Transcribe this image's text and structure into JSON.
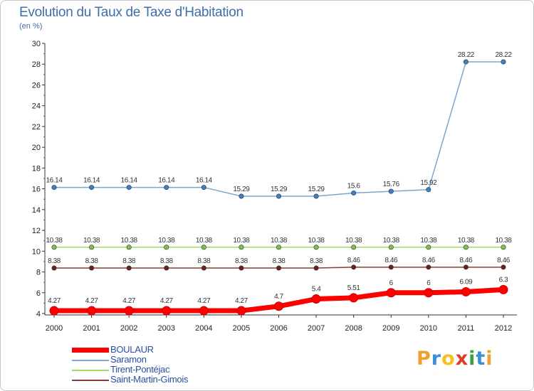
{
  "title": "Evolution du Taux de Taxe d'Habitation",
  "subtitle": "(en %)",
  "logo": {
    "letters": [
      "P",
      "r",
      "o",
      "x",
      "i",
      "t",
      "i"
    ],
    "colors": [
      "#f0a030",
      "#3b8fd8",
      "#f5c020",
      "#e03c2c",
      "#3aa040",
      "#3b8fd8",
      "#f0a030"
    ]
  },
  "chart_data": {
    "type": "line",
    "title": "Evolution du Taux de Taxe d'Habitation",
    "ylabel": "(en %)",
    "xlabel": "",
    "ylim": [
      4,
      30
    ],
    "yticks": [
      4,
      6,
      8,
      10,
      12,
      14,
      16,
      18,
      20,
      22,
      24,
      26,
      28,
      30
    ],
    "x": [
      "2000",
      "2001",
      "2002",
      "2003",
      "2004",
      "2005",
      "2006",
      "2007",
      "2008",
      "2009",
      "2010",
      "2011",
      "2012"
    ],
    "series": [
      {
        "name": "BOULAUR",
        "color": "#ff0000",
        "marker": "#ff0000",
        "values": [
          4.27,
          4.27,
          4.27,
          4.27,
          4.27,
          4.27,
          4.7,
          5.4,
          5.51,
          6,
          6,
          6.09,
          6.3
        ],
        "labels": [
          "4.27",
          "4.27",
          "4.27",
          "4.27",
          "4.27",
          "4.27",
          "4.7",
          "5.4",
          "5.51",
          "6",
          "6",
          "6.09",
          "6.3"
        ]
      },
      {
        "name": "Saramon",
        "color": "#7aa7d2",
        "marker": "#3b82c4",
        "values": [
          16.14,
          16.14,
          16.14,
          16.14,
          16.14,
          15.29,
          15.29,
          15.29,
          15.6,
          15.76,
          15.92,
          28.22,
          28.22
        ],
        "labels": [
          "16.14",
          "16.14",
          "16.14",
          "16.14",
          "16.14",
          "15.29",
          "15.29",
          "15.29",
          "15.6",
          "15.76",
          "15.92",
          "28.22",
          "28.22"
        ]
      },
      {
        "name": "Tirent-Pontéjac",
        "color": "#99dd66",
        "marker": "#7cc44a",
        "values": [
          10.38,
          10.38,
          10.38,
          10.38,
          10.38,
          10.38,
          10.38,
          10.38,
          10.38,
          10.38,
          10.38,
          10.38,
          10.38
        ],
        "labels": [
          "10.38",
          "10.38",
          "10.38",
          "10.38",
          "10.38",
          "10.38",
          "10.38",
          "10.38",
          "10.38",
          "10.38",
          "10.38",
          "10.38",
          "10.38"
        ]
      },
      {
        "name": "Saint-Martin-Gimois",
        "color": "#8a3a3a",
        "marker": "#6b1f1f",
        "values": [
          8.38,
          8.38,
          8.38,
          8.38,
          8.38,
          8.38,
          8.38,
          8.38,
          8.46,
          8.46,
          8.46,
          8.46,
          8.46
        ],
        "labels": [
          "8.38",
          "8.38",
          "8.38",
          "8.38",
          "8.38",
          "8.38",
          "8.38",
          "8.38",
          "8.46",
          "8.46",
          "8.46",
          "8.46",
          "8.46"
        ]
      }
    ],
    "legend_position": "bottom-left",
    "grid": false
  }
}
